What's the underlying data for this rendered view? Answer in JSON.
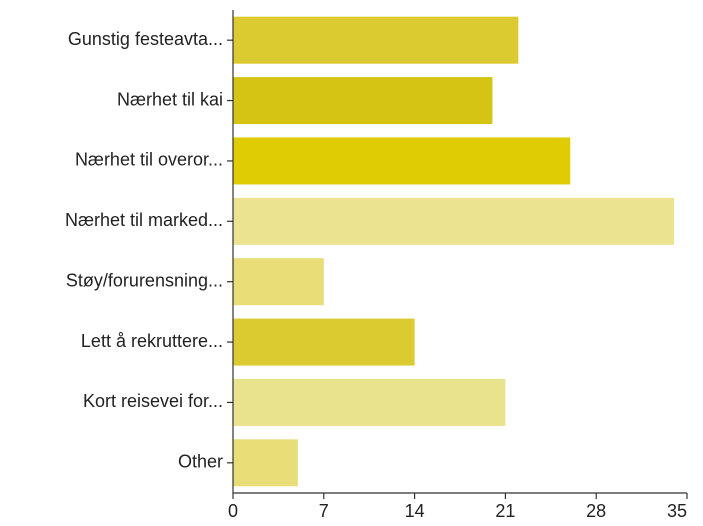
{
  "chart_data": {
    "type": "bar",
    "orientation": "horizontal",
    "title": "",
    "xlabel": "",
    "ylabel": "",
    "categories": [
      "Gunstig festeavta...",
      "Nærhet til kai",
      "Nærhet til overor...",
      "Nærhet til marked...",
      "Støy/forurensning...",
      "Lett å rekruttere...",
      "Kort reisevei for...",
      "Other"
    ],
    "values": [
      22,
      20,
      26,
      34,
      7,
      14,
      21,
      5
    ],
    "colors": [
      "#dccb30",
      "#d6c414",
      "#dfcc05",
      "#ebe38f",
      "#e8dd76",
      "#dccb30",
      "#eae38e",
      "#e8dd76"
    ],
    "xlim": [
      0,
      35
    ],
    "xticks": [
      0,
      7,
      14,
      21,
      28,
      35
    ],
    "grid": false
  }
}
